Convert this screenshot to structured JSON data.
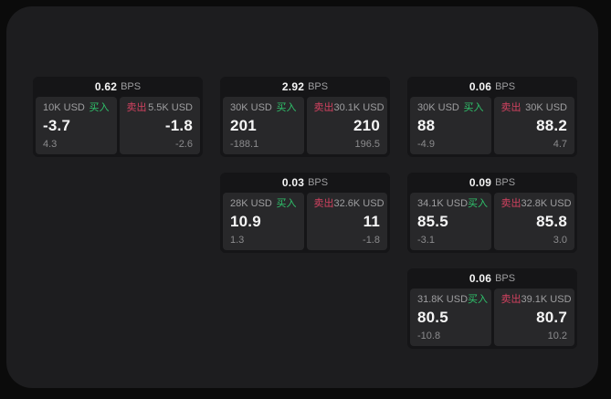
{
  "labels": {
    "bps": "BPS",
    "buy": "买入",
    "sell": "卖出"
  },
  "colors": {
    "page_bg": "#0b0b0b",
    "panel_bg": "#1d1d1f",
    "card_bg": "#151517",
    "tile_bg": "#28282a",
    "buy_green": "#2fc26b",
    "sell_red": "#d24260",
    "label_gray": "#9e9ea0",
    "muted_gray": "#8b8b8d",
    "value_white": "#f5f5f5"
  },
  "cards": [
    {
      "bps_value": "0.62",
      "col": 1,
      "row": 1,
      "buy": {
        "notional": "10K USD",
        "price": "-3.7",
        "delta": "4.3"
      },
      "sell": {
        "notional": "5.5K USD",
        "price": "-1.8",
        "delta": "-2.6"
      }
    },
    {
      "bps_value": "2.92",
      "col": 2,
      "row": 1,
      "buy": {
        "notional": "30K USD",
        "price": "201",
        "delta": "-188.1"
      },
      "sell": {
        "notional": "30.1K USD",
        "price": "210",
        "delta": "196.5"
      }
    },
    {
      "bps_value": "0.06",
      "col": 3,
      "row": 1,
      "buy": {
        "notional": "30K USD",
        "price": "88",
        "delta": "-4.9"
      },
      "sell": {
        "notional": "30K USD",
        "price": "88.2",
        "delta": "4.7"
      }
    },
    {
      "bps_value": "0.03",
      "col": 2,
      "row": 2,
      "buy": {
        "notional": "28K USD",
        "price": "10.9",
        "delta": "1.3"
      },
      "sell": {
        "notional": "32.6K USD",
        "price": "11",
        "delta": "-1.8"
      }
    },
    {
      "bps_value": "0.09",
      "col": 3,
      "row": 2,
      "buy": {
        "notional": "34.1K USD",
        "price": "85.5",
        "delta": "-3.1"
      },
      "sell": {
        "notional": "32.8K USD",
        "price": "85.8",
        "delta": "3.0"
      }
    },
    {
      "bps_value": "0.06",
      "col": 3,
      "row": 3,
      "buy": {
        "notional": "31.8K USD",
        "price": "80.5",
        "delta": "-10.8"
      },
      "sell": {
        "notional": "39.1K USD",
        "price": "80.7",
        "delta": "10.2"
      }
    }
  ]
}
